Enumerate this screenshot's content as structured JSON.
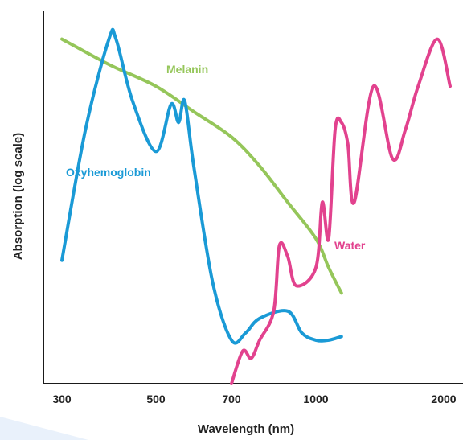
{
  "chart_data": {
    "type": "line",
    "xlabel": "Wavelength (nm)",
    "ylabel": "Absorption (log scale)",
    "xticks": [
      "300",
      "500",
      "700",
      "1000",
      "2000"
    ],
    "xtick_values": [
      300,
      500,
      700,
      1000,
      2000
    ],
    "x_scale": "nonlinear (tick labels at 300, 500, 700, 1000, 2000 nm)",
    "y_scale": "log (no tick labels shown)",
    "grid": false,
    "legend": "none; series labelled directly on curves",
    "series": [
      {
        "name": "Melanin",
        "color": "#95c65a",
        "x": [
          300,
          400,
          500,
          600,
          700,
          800,
          900,
          1000,
          1100,
          1200
        ],
        "y": [
          0.95,
          0.88,
          0.82,
          0.75,
          0.68,
          0.6,
          0.5,
          0.4,
          0.32,
          0.25
        ]
      },
      {
        "name": "Oxyhemoglobin",
        "color": "#1a9ad6",
        "x": [
          300,
          350,
          400,
          415,
          450,
          500,
          540,
          560,
          576,
          600,
          650,
          700,
          750,
          800,
          900,
          950,
          1000,
          1100,
          1200
        ],
        "y": [
          0.34,
          0.7,
          0.95,
          0.95,
          0.78,
          0.64,
          0.77,
          0.72,
          0.78,
          0.6,
          0.28,
          0.12,
          0.14,
          0.18,
          0.2,
          0.14,
          0.12,
          0.12,
          0.13
        ]
      },
      {
        "name": "Water",
        "color": "#e2428e",
        "x": [
          700,
          740,
          770,
          800,
          850,
          870,
          900,
          930,
          1000,
          1050,
          1100,
          1150,
          1200,
          1250,
          1300,
          1450,
          1600,
          1700,
          1800,
          1950,
          2050
        ],
        "y": [
          0.0,
          0.09,
          0.07,
          0.12,
          0.2,
          0.38,
          0.35,
          0.27,
          0.32,
          0.5,
          0.4,
          0.7,
          0.72,
          0.66,
          0.5,
          0.82,
          0.62,
          0.7,
          0.82,
          0.95,
          0.82
        ]
      }
    ]
  },
  "labels": {
    "melanin": "Melanin",
    "oxyhemoglobin": "Oxyhemoglobin",
    "water": "Water"
  },
  "colors": {
    "axis": "#1a1a1a",
    "background_wedge": "#e9f1fb"
  }
}
